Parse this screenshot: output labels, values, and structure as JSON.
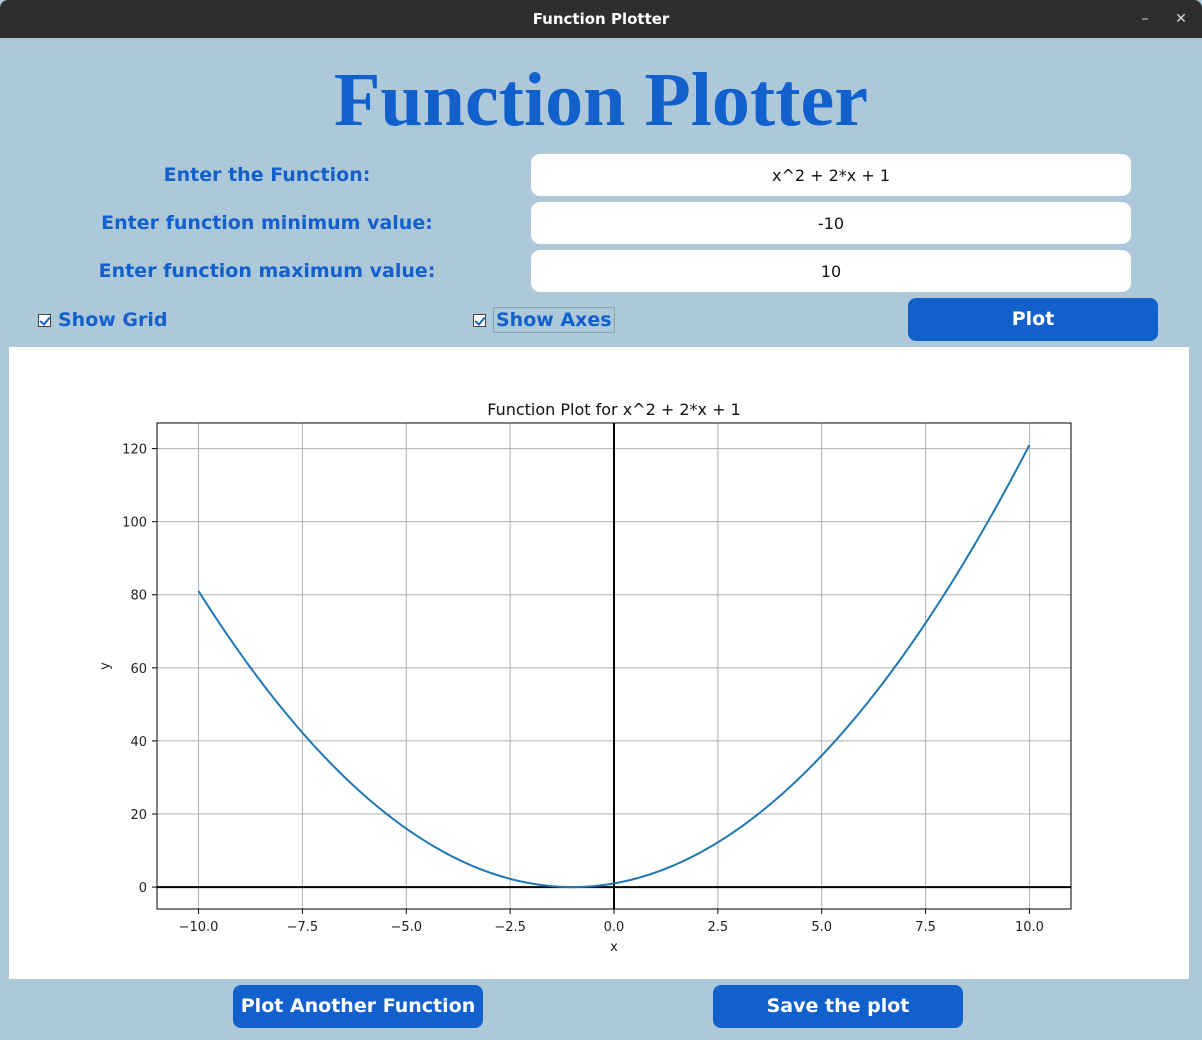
{
  "window": {
    "title": "Function Plotter",
    "minimize_glyph": "–",
    "close_glyph": "✕"
  },
  "heading": "Function Plotter",
  "form": {
    "function_label": "Enter the Function:",
    "function_value": "x^2 + 2*x + 1",
    "min_label": "Enter function minimum value:",
    "min_value": "-10",
    "max_label": "Enter function maximum value:",
    "max_value": "10"
  },
  "options": {
    "show_grid": {
      "label": "Show Grid",
      "checked": true
    },
    "show_axes": {
      "label": "Show Axes",
      "checked": true
    }
  },
  "buttons": {
    "plot": "Plot",
    "plot_another": "Plot Another Function",
    "save": "Save the plot"
  },
  "colors": {
    "accent": "#1160cc",
    "background": "#adc8d8",
    "line": "#1f77b4"
  },
  "chart_data": {
    "type": "line",
    "title": "Function Plot for x^2 + 2*x + 1",
    "xlabel": "x",
    "ylabel": "y",
    "function": "x^2 + 2*x + 1",
    "x_range": [
      -10,
      10
    ],
    "xlim": [
      -11,
      11
    ],
    "ylim": [
      -6,
      127
    ],
    "x_ticks": [
      "−10.0",
      "−7.5",
      "−5.0",
      "−2.5",
      "0.0",
      "2.5",
      "5.0",
      "7.5",
      "10.0"
    ],
    "y_ticks": [
      "0",
      "20",
      "40",
      "60",
      "80",
      "100",
      "120"
    ],
    "grid": true,
    "axes_lines": true,
    "series": [
      {
        "x": [
          -10,
          -9,
          -8,
          -7,
          -6,
          -5,
          -4,
          -3,
          -2,
          -1,
          0,
          1,
          2,
          3,
          4,
          5,
          6,
          7,
          8,
          9,
          10
        ],
        "y": [
          81,
          64,
          49,
          36,
          25,
          16,
          9,
          4,
          1,
          0,
          1,
          4,
          9,
          16,
          25,
          36,
          49,
          64,
          81,
          100,
          121
        ]
      }
    ]
  }
}
